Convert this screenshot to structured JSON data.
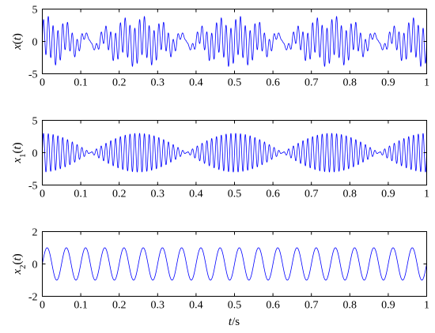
{
  "chart_data": [
    {
      "type": "line",
      "ylabel": {
        "var": "x",
        "sub": "",
        "arg": "(",
        "argvar": "t",
        "argclose": ")"
      },
      "xlim": [
        0,
        1
      ],
      "ylim": [
        -5,
        5
      ],
      "xticks": [
        "0",
        "0.1",
        "0.2",
        "0.3",
        "0.4",
        "0.5",
        "0.6",
        "0.7",
        "0.8",
        "0.9",
        "1"
      ],
      "yticks": [
        "5",
        "0",
        "-5"
      ],
      "ytick_values": [
        5,
        0,
        -5
      ],
      "color": "#0000ff",
      "series": [
        {
          "formula": "sum",
          "components": [
            {
              "amplitude": 3,
              "frequency_hz": 80,
              "modulation_frequency_hz": 4
            },
            {
              "amplitude": 1,
              "frequency_hz": 20
            }
          ]
        }
      ]
    },
    {
      "type": "line",
      "ylabel": {
        "var": "x",
        "sub": "1",
        "arg": "(",
        "argvar": "t",
        "argclose": ")"
      },
      "xlim": [
        0,
        1
      ],
      "ylim": [
        -5,
        5
      ],
      "xticks": [
        "0",
        "0.1",
        "0.2",
        "0.3",
        "0.4",
        "0.5",
        "0.6",
        "0.7",
        "0.8",
        "0.9",
        "1"
      ],
      "yticks": [
        "5",
        "0",
        "-5"
      ],
      "ytick_values": [
        5,
        0,
        -5
      ],
      "color": "#0000ff",
      "series": [
        {
          "formula": "am",
          "amplitude": 3,
          "frequency_hz": 80,
          "modulation_frequency_hz": 4
        }
      ]
    },
    {
      "type": "line",
      "ylabel": {
        "var": "x",
        "sub": "2",
        "arg": "(",
        "argvar": "t",
        "argclose": ")"
      },
      "xlabel": {
        "var": "t",
        "unit": "/s"
      },
      "xlim": [
        0,
        1
      ],
      "ylim": [
        -2,
        2
      ],
      "xticks": [
        "0",
        "0.1",
        "0.2",
        "0.3",
        "0.4",
        "0.5",
        "0.6",
        "0.7",
        "0.8",
        "0.9",
        "1"
      ],
      "yticks": [
        "2",
        "0",
        "-2"
      ],
      "ytick_values": [
        2,
        0,
        -2
      ],
      "color": "#0000ff",
      "series": [
        {
          "formula": "sine",
          "amplitude": 1,
          "frequency_hz": 20
        }
      ]
    }
  ]
}
